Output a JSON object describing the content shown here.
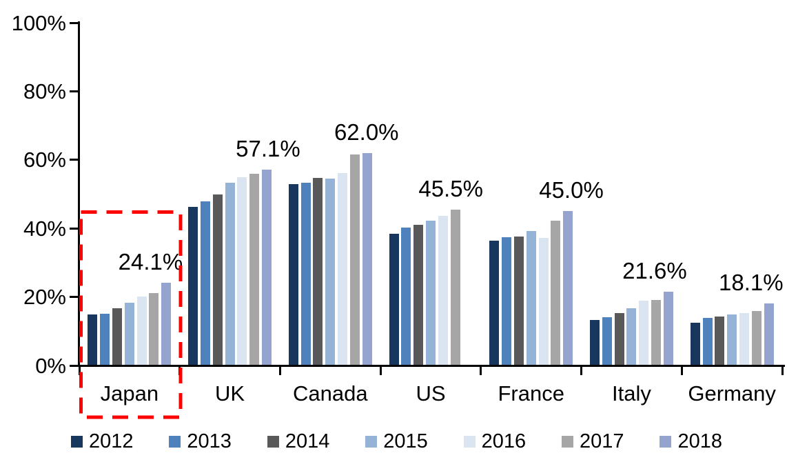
{
  "chart_data": {
    "type": "bar",
    "title": "",
    "xlabel": "",
    "ylabel": "",
    "grid": false,
    "legend_position": "bottom",
    "categories": [
      "Japan",
      "UK",
      "Canada",
      "US",
      "France",
      "Italy",
      "Germany"
    ],
    "series": [
      {
        "name": "2012",
        "color": "#17375E",
        "values": [
          14.8,
          46.3,
          52.9,
          38.4,
          36.5,
          13.2,
          12.4
        ]
      },
      {
        "name": "2013",
        "color": "#4F81BD",
        "values": [
          15.0,
          47.8,
          53.3,
          40.2,
          37.5,
          14.1,
          13.9
        ]
      },
      {
        "name": "2014",
        "color": "#595959",
        "values": [
          16.6,
          49.9,
          54.7,
          41.1,
          37.6,
          15.2,
          14.3
        ]
      },
      {
        "name": "2015",
        "color": "#95B3D7",
        "values": [
          18.3,
          53.3,
          54.5,
          42.3,
          39.2,
          16.8,
          14.8
        ]
      },
      {
        "name": "2016",
        "color": "#DBE5F1",
        "values": [
          20.1,
          54.9,
          56.1,
          43.7,
          37.2,
          18.9,
          15.3
        ]
      },
      {
        "name": "2017",
        "color": "#A6A6A6",
        "values": [
          21.2,
          56.0,
          61.5,
          45.5,
          42.3,
          19.1,
          15.9
        ]
      },
      {
        "name": "2018",
        "color": "#95A4CE",
        "values": [
          24.1,
          57.1,
          62.0,
          null,
          45.0,
          21.6,
          18.1
        ]
      }
    ],
    "data_labels": [
      {
        "category": "Japan",
        "text": "24.1%",
        "value": 24.1
      },
      {
        "category": "UK",
        "text": "57.1%",
        "value": 57.1
      },
      {
        "category": "Canada",
        "text": "62.0%",
        "value": 62.0
      },
      {
        "category": "US",
        "text": "45.5%",
        "value": 45.5
      },
      {
        "category": "France",
        "text": "45.0%",
        "value": 45.0
      },
      {
        "category": "Italy",
        "text": "21.6%",
        "value": 21.6
      },
      {
        "category": "Germany",
        "text": "18.1%",
        "value": 18.1
      }
    ],
    "y_axis": {
      "min": 0,
      "max": 100,
      "step": 20,
      "tick_labels": [
        "100%",
        "80%",
        "60%",
        "40%",
        "20%",
        "0%"
      ],
      "tick_values": [
        100,
        80,
        60,
        40,
        20,
        0
      ]
    },
    "legend": [
      "2012",
      "2013",
      "2014",
      "2015",
      "2016",
      "2017",
      "2018"
    ],
    "annotation": {
      "type": "dashed-rectangle",
      "color": "#FF0000",
      "target_category": "Japan"
    }
  }
}
